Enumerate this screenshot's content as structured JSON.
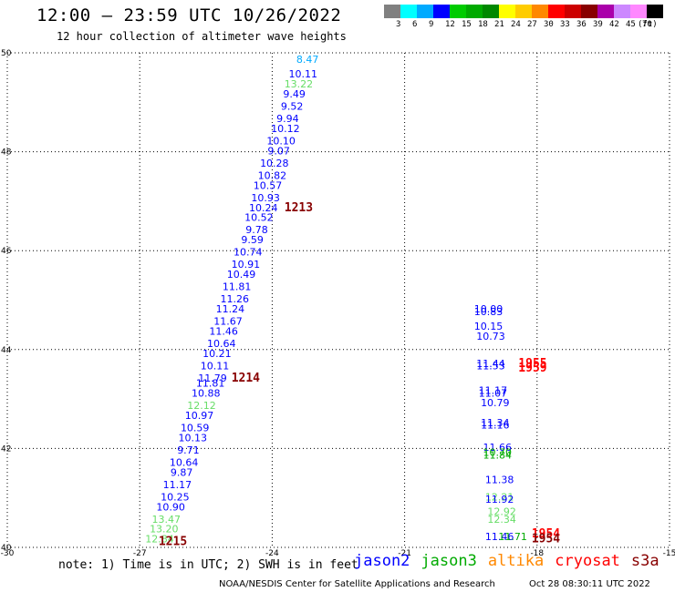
{
  "header": {
    "title": "12:00 – 23:59 UTC 10/26/2022",
    "subtitle": "12 hour collection of altimeter wave heights"
  },
  "legend": {
    "unit": "(ft)",
    "bins": [
      {
        "label": "3",
        "color": "#808080"
      },
      {
        "label": "6",
        "color": "#00ffff"
      },
      {
        "label": "9",
        "color": "#00aaff"
      },
      {
        "label": "12",
        "color": "#0000ff"
      },
      {
        "label": "15",
        "color": "#00cc00"
      },
      {
        "label": "18",
        "color": "#00aa00"
      },
      {
        "label": "21",
        "color": "#008800"
      },
      {
        "label": "24",
        "color": "#ffff00"
      },
      {
        "label": "27",
        "color": "#ffcc00"
      },
      {
        "label": "30",
        "color": "#ff8800"
      },
      {
        "label": "33",
        "color": "#ff0000"
      },
      {
        "label": "36",
        "color": "#cc0000"
      },
      {
        "label": "39",
        "color": "#880000"
      },
      {
        "label": "42",
        "color": "#aa00aa"
      },
      {
        "label": "45",
        "color": "#cc88ff"
      },
      {
        "label": "70",
        "color": "#ff88ff"
      },
      {
        "label": "",
        "color": "#000000"
      }
    ]
  },
  "chart_data": {
    "type": "scatter",
    "title": "12:00 – 23:59 UTC 10/26/2022",
    "subtitle": "12 hour collection of altimeter wave heights",
    "xlim": [
      -30,
      -15
    ],
    "ylim": [
      40,
      50
    ],
    "x_ticks": [
      "-30",
      "-27",
      "-24",
      "-21",
      "-18",
      "-15"
    ],
    "y_ticks": [
      "40",
      "42",
      "44",
      "46",
      "48",
      "50"
    ],
    "grid": "dotted",
    "track_a": [
      {
        "lon": -23.2,
        "lat": 49.8,
        "v": "8.47",
        "c": "#00aaff"
      },
      {
        "lon": -23.3,
        "lat": 49.5,
        "v": "10.11",
        "c": "#0000ff"
      },
      {
        "lon": -23.4,
        "lat": 49.3,
        "v": "13.22",
        "c": "#66dd66"
      },
      {
        "lon": -23.5,
        "lat": 49.1,
        "v": "9.49",
        "c": "#0000ff"
      },
      {
        "lon": -23.55,
        "lat": 48.85,
        "v": "9.52",
        "c": "#0000ff"
      },
      {
        "lon": -23.65,
        "lat": 48.6,
        "v": "9.94",
        "c": "#0000ff"
      },
      {
        "lon": -23.7,
        "lat": 48.4,
        "v": "10.12",
        "c": "#0000ff"
      },
      {
        "lon": -23.8,
        "lat": 48.15,
        "v": "10.10",
        "c": "#0000ff"
      },
      {
        "lon": -23.85,
        "lat": 47.95,
        "v": "9.07",
        "c": "#0000ff"
      },
      {
        "lon": -23.95,
        "lat": 47.7,
        "v": "10.28",
        "c": "#0000ff"
      },
      {
        "lon": -24.0,
        "lat": 47.45,
        "v": "10.82",
        "c": "#0000ff"
      },
      {
        "lon": -24.1,
        "lat": 47.25,
        "v": "10.57",
        "c": "#0000ff"
      },
      {
        "lon": -24.15,
        "lat": 47.0,
        "v": "10.93",
        "c": "#0000ff"
      },
      {
        "lon": -24.2,
        "lat": 46.8,
        "v": "10.24",
        "c": "#0000ff"
      },
      {
        "lon": -24.3,
        "lat": 46.6,
        "v": "10.52",
        "c": "#0000ff"
      },
      {
        "lon": -24.35,
        "lat": 46.35,
        "v": "9.78",
        "c": "#0000ff"
      },
      {
        "lon": -24.45,
        "lat": 46.15,
        "v": "9.59",
        "c": "#0000ff"
      },
      {
        "lon": -24.55,
        "lat": 45.9,
        "v": "10.74",
        "c": "#0000ff"
      },
      {
        "lon": -24.6,
        "lat": 45.65,
        "v": "10.91",
        "c": "#0000ff"
      },
      {
        "lon": -24.7,
        "lat": 45.45,
        "v": "10.49",
        "c": "#0000ff"
      },
      {
        "lon": -24.8,
        "lat": 45.2,
        "v": "11.81",
        "c": "#0000ff"
      },
      {
        "lon": -24.85,
        "lat": 44.95,
        "v": "11.26",
        "c": "#0000ff"
      },
      {
        "lon": -24.95,
        "lat": 44.75,
        "v": "11.24",
        "c": "#0000ff"
      },
      {
        "lon": -25.0,
        "lat": 44.5,
        "v": "11.67",
        "c": "#0000ff"
      },
      {
        "lon": -25.1,
        "lat": 44.3,
        "v": "11.46",
        "c": "#0000ff"
      },
      {
        "lon": -25.15,
        "lat": 44.05,
        "v": "10.64",
        "c": "#0000ff"
      },
      {
        "lon": -25.25,
        "lat": 43.85,
        "v": "10.21",
        "c": "#0000ff"
      },
      {
        "lon": -25.3,
        "lat": 43.6,
        "v": "10.11",
        "c": "#0000ff"
      },
      {
        "lon": -25.35,
        "lat": 43.35,
        "v": "11.79",
        "c": "#0000ff"
      },
      {
        "lon": -25.4,
        "lat": 43.25,
        "v": "11.81",
        "c": "#0000ff"
      },
      {
        "lon": -25.5,
        "lat": 43.05,
        "v": "10.88",
        "c": "#0000ff"
      },
      {
        "lon": -25.6,
        "lat": 42.8,
        "v": "12.12",
        "c": "#66dd66"
      },
      {
        "lon": -25.65,
        "lat": 42.6,
        "v": "10.97",
        "c": "#0000ff"
      },
      {
        "lon": -25.75,
        "lat": 42.35,
        "v": "10.59",
        "c": "#0000ff"
      },
      {
        "lon": -25.8,
        "lat": 42.15,
        "v": "10.13",
        "c": "#0000ff"
      },
      {
        "lon": -25.9,
        "lat": 41.9,
        "v": "9.71",
        "c": "#0000ff"
      },
      {
        "lon": -26.0,
        "lat": 41.65,
        "v": "10.64",
        "c": "#0000ff"
      },
      {
        "lon": -26.05,
        "lat": 41.45,
        "v": "9.87",
        "c": "#0000ff"
      },
      {
        "lon": -26.15,
        "lat": 41.2,
        "v": "11.17",
        "c": "#0000ff"
      },
      {
        "lon": -26.2,
        "lat": 40.95,
        "v": "10.25",
        "c": "#0000ff"
      },
      {
        "lon": -26.3,
        "lat": 40.75,
        "v": "10.90",
        "c": "#0000ff"
      },
      {
        "lon": -26.4,
        "lat": 40.5,
        "v": "13.47",
        "c": "#66dd66"
      },
      {
        "lon": -26.45,
        "lat": 40.3,
        "v": "13.20",
        "c": "#66dd66"
      },
      {
        "lon": -26.55,
        "lat": 40.1,
        "v": "12.84",
        "c": "#66dd66"
      }
    ],
    "track_b": [
      {
        "lon": -19.1,
        "lat": 44.75,
        "v": "10.00",
        "c": "#0000ff"
      },
      {
        "lon": -19.1,
        "lat": 44.7,
        "v": "10.83",
        "c": "#0000ff"
      },
      {
        "lon": -19.1,
        "lat": 44.4,
        "v": "10.15",
        "c": "#0000ff"
      },
      {
        "lon": -19.05,
        "lat": 44.2,
        "v": "10.73",
        "c": "#0000ff"
      },
      {
        "lon": -19.05,
        "lat": 43.65,
        "v": "11.44",
        "c": "#0000ff"
      },
      {
        "lon": -19.05,
        "lat": 43.6,
        "v": "11.53",
        "c": "#0000ff"
      },
      {
        "lon": -19.0,
        "lat": 43.1,
        "v": "11.17",
        "c": "#0000ff"
      },
      {
        "lon": -19.0,
        "lat": 43.05,
        "v": "11.07",
        "c": "#0000ff"
      },
      {
        "lon": -18.95,
        "lat": 42.85,
        "v": "10.79",
        "c": "#0000ff"
      },
      {
        "lon": -18.95,
        "lat": 42.45,
        "v": "11.34",
        "c": "#0000ff"
      },
      {
        "lon": -18.95,
        "lat": 42.4,
        "v": "11.16",
        "c": "#0000ff"
      },
      {
        "lon": -18.9,
        "lat": 41.95,
        "v": "11.66",
        "c": "#0000ff"
      },
      {
        "lon": -18.9,
        "lat": 41.85,
        "v": "10.70",
        "c": "#00aa00"
      },
      {
        "lon": -18.9,
        "lat": 41.8,
        "v": "11.84",
        "c": "#00aa00"
      },
      {
        "lon": -18.85,
        "lat": 41.3,
        "v": "11.38",
        "c": "#0000ff"
      },
      {
        "lon": -18.85,
        "lat": 40.95,
        "v": "12.21",
        "c": "#66dd66"
      },
      {
        "lon": -18.85,
        "lat": 40.9,
        "v": "11.92",
        "c": "#0000ff"
      },
      {
        "lon": -18.8,
        "lat": 40.65,
        "v": "12.92",
        "c": "#66dd66"
      },
      {
        "lon": -18.8,
        "lat": 40.5,
        "v": "12.34",
        "c": "#66dd66"
      },
      {
        "lon": -18.85,
        "lat": 40.15,
        "v": "11.46",
        "c": "#0000ff"
      },
      {
        "lon": -18.55,
        "lat": 40.15,
        "v": "11.71",
        "c": "#00aa00"
      }
    ],
    "time_labels": [
      {
        "lon": -23.4,
        "lat": 46.8,
        "text": "1213",
        "c": "#880000"
      },
      {
        "lon": -24.6,
        "lat": 43.35,
        "text": "1214",
        "c": "#880000"
      },
      {
        "lon": -26.25,
        "lat": 40.05,
        "text": "1215",
        "c": "#880000"
      },
      {
        "lon": -18.1,
        "lat": 43.65,
        "text": "1955",
        "c": "#ff0000"
      },
      {
        "lon": -18.1,
        "lat": 43.55,
        "text": "1959",
        "c": "#ff0000"
      },
      {
        "lon": -17.8,
        "lat": 40.2,
        "text": "1954",
        "c": "#ff0000"
      },
      {
        "lon": -17.8,
        "lat": 40.1,
        "text": "1954",
        "c": "#880000"
      }
    ]
  },
  "footer": {
    "note": "note: 1) Time is in UTC; 2) SWH is in feet",
    "satellites": [
      {
        "name": "jason2",
        "color": "#0000ff"
      },
      {
        "name": "jason3",
        "color": "#00aa00"
      },
      {
        "name": "altika",
        "color": "#ff8800"
      },
      {
        "name": "cryosat",
        "color": "#ff0000"
      },
      {
        "name": "s3a",
        "color": "#880000"
      }
    ],
    "credit": "NOAA/NESDIS Center for Satellite Applications and Research",
    "timestamp": "Oct 28 08:30:11 UTC 2022"
  }
}
